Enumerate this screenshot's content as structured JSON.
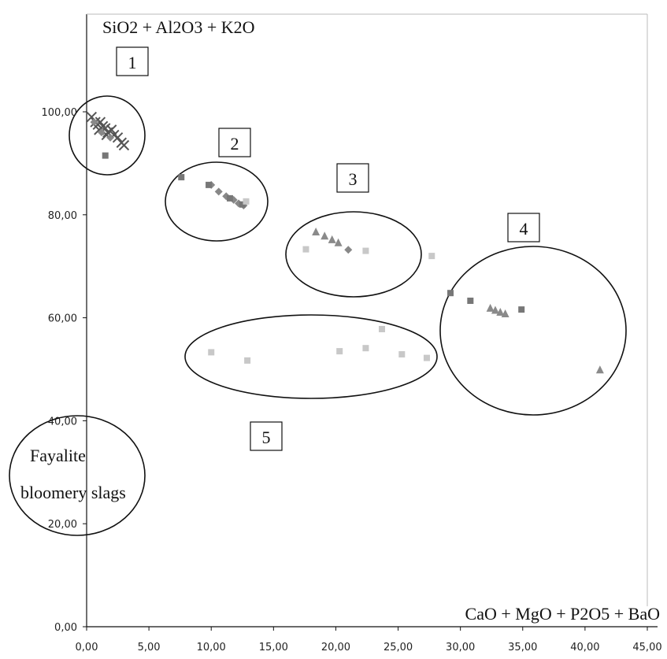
{
  "chart_data": {
    "type": "scatter",
    "title": "",
    "ylabel": "SiO2 + Al2O3 + K2O",
    "xlabel": "CaO + MgO + P2O5 + BaO",
    "xlim": [
      0,
      45
    ],
    "ylim": [
      0,
      100
    ],
    "x_ticks": [
      "0,00",
      "5,00",
      "10,00",
      "15,00",
      "20,00",
      "25,00",
      "30,00",
      "35,00",
      "40,00",
      "45,00"
    ],
    "y_ticks": [
      "0,00",
      "20,00",
      "40,00",
      "60,00",
      "80,00",
      "100,00"
    ],
    "grid": false,
    "legend": "none",
    "series": [
      {
        "marker": "cross",
        "color": "#555555",
        "points": [
          [
            0.4,
            99
          ],
          [
            0.7,
            98
          ],
          [
            0.9,
            97.5
          ],
          [
            1.1,
            98
          ],
          [
            1.3,
            97.2
          ],
          [
            1.5,
            96.8
          ],
          [
            1.7,
            96
          ],
          [
            2.0,
            96.5
          ],
          [
            2.2,
            95.5
          ],
          [
            2.5,
            95
          ],
          [
            2.8,
            94
          ],
          [
            3.0,
            93.5
          ],
          [
            1.0,
            96.5
          ],
          [
            1.6,
            95.5
          ]
        ]
      },
      {
        "marker": "diamond",
        "color": "#888888",
        "points": [
          [
            0.6,
            98
          ],
          [
            1.2,
            96
          ],
          [
            1.9,
            95
          ],
          [
            10.0,
            85.8
          ],
          [
            10.6,
            84.5
          ],
          [
            11.2,
            83.6
          ],
          [
            11.8,
            82.9
          ],
          [
            12.2,
            82.2
          ],
          [
            12.6,
            81.8
          ],
          [
            21.0,
            73.2
          ]
        ]
      },
      {
        "marker": "square",
        "color": "#777777",
        "points": [
          [
            1.5,
            91.5
          ],
          [
            7.6,
            87.3
          ],
          [
            9.8,
            85.8
          ],
          [
            11.5,
            83.2
          ],
          [
            12.5,
            82.0
          ],
          [
            29.2,
            64.8
          ],
          [
            30.8,
            63.3
          ],
          [
            34.9,
            61.6
          ]
        ]
      },
      {
        "marker": "triangle",
        "color": "#8a8a8a",
        "points": [
          [
            18.4,
            76.6
          ],
          [
            19.1,
            75.8
          ],
          [
            19.7,
            75.1
          ],
          [
            20.2,
            74.5
          ],
          [
            32.4,
            61.8
          ],
          [
            32.8,
            61.4
          ],
          [
            33.2,
            61.0
          ],
          [
            33.6,
            60.7
          ],
          [
            41.2,
            49.8
          ]
        ]
      },
      {
        "marker": "square",
        "color": "#c8c8c8",
        "points": [
          [
            12.8,
            82.6
          ],
          [
            17.6,
            73.3
          ],
          [
            22.4,
            73.0
          ],
          [
            27.7,
            72.0
          ],
          [
            10.0,
            53.3
          ],
          [
            12.9,
            51.7
          ],
          [
            20.3,
            53.5
          ],
          [
            22.4,
            54.1
          ],
          [
            23.7,
            57.8
          ],
          [
            25.3,
            52.9
          ],
          [
            27.3,
            52.2
          ]
        ]
      }
    ],
    "group_labels": [
      "1",
      "2",
      "3",
      "4",
      "5"
    ],
    "annotation_lines": [
      "Fayalite",
      "bloomery slags"
    ]
  }
}
